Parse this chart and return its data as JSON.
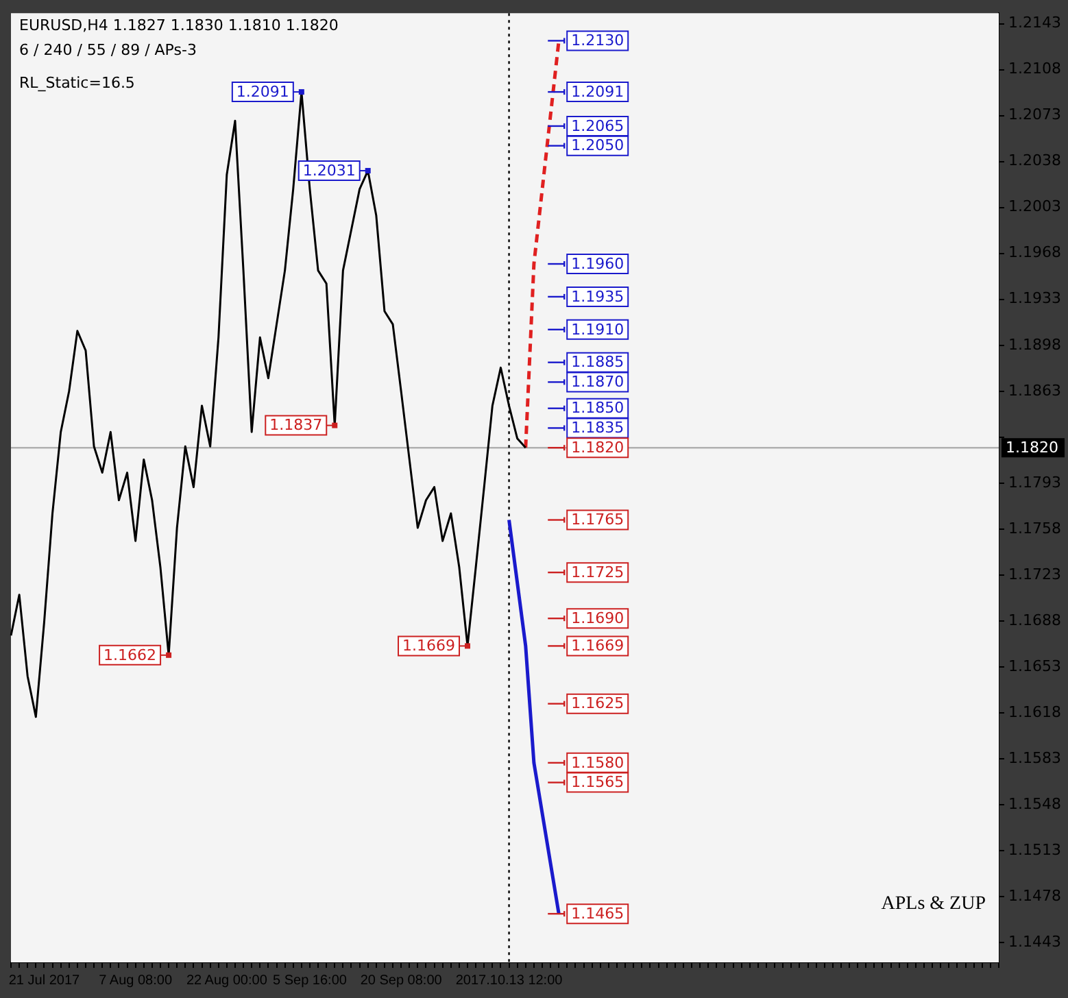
{
  "chart_data": {
    "type": "line",
    "title": "EURUSD,H4 1.1827 1.1830 1.1810 1.1820",
    "subtitle": "6 / 240 / 55 / 89 / APs-3",
    "categories": [
      null,
      null,
      null,
      null,
      "21 Jul 2017",
      null,
      null,
      null,
      null,
      null,
      null,
      null,
      null,
      null,
      null,
      "7 Aug 08:00",
      null,
      null,
      null,
      null,
      null,
      null,
      null,
      null,
      null,
      null,
      "22 Aug 00:00",
      null,
      null,
      null,
      null,
      null,
      null,
      null,
      null,
      null,
      "5 Sep 16:00",
      null,
      null,
      null,
      null,
      null,
      null,
      null,
      null,
      null,
      null,
      "20 Sep 08:00",
      null,
      null,
      null,
      null,
      null,
      null,
      null,
      null,
      null,
      null,
      null,
      null,
      "2017.10.13 12:00",
      null,
      null,
      null,
      null,
      null,
      null,
      null,
      null,
      null,
      null,
      null,
      null,
      null,
      null,
      null,
      null,
      null,
      null,
      null,
      null,
      null,
      null,
      null,
      null,
      null,
      null,
      null,
      null,
      null,
      null,
      null,
      null,
      null,
      null,
      null,
      null,
      null,
      null,
      null,
      null,
      null,
      null,
      null,
      null,
      null,
      null,
      null,
      null,
      null,
      null,
      null,
      null,
      null,
      null,
      null,
      null,
      null,
      null,
      null
    ],
    "series": [
      {
        "color": "#000000",
        "line_style": "solid",
        "values": [
          1.1677,
          1.1708,
          1.1646,
          1.1615,
          1.1687,
          1.177,
          1.1832,
          1.1863,
          1.1909,
          1.1894,
          1.1821,
          1.1801,
          1.1832,
          1.178,
          1.1801,
          1.1749,
          1.1811,
          1.178,
          1.1729,
          1.1662,
          1.1759,
          1.1821,
          1.179,
          1.1852,
          1.1821,
          1.1904,
          1.2028,
          1.2069,
          1.1955,
          1.1832,
          1.1904,
          1.1873,
          1.1914,
          1.1955,
          1.2017,
          1.2091,
          1.2017,
          1.1955,
          1.1945,
          1.1837,
          1.1955,
          1.1986,
          1.2017,
          1.2031,
          1.1997,
          1.1924,
          1.1914,
          1.1863,
          1.1811,
          1.1759,
          1.178,
          1.179,
          1.1749,
          1.177,
          1.1729,
          1.1669,
          1.1729,
          1.179,
          1.1852,
          1.1881,
          1.1852,
          1.1827,
          1.182,
          null,
          null,
          null,
          null,
          null,
          null,
          null,
          null,
          null,
          null,
          null,
          null,
          null,
          null,
          null,
          null,
          null,
          null,
          null,
          null,
          null,
          null,
          null,
          null,
          null,
          null,
          null,
          null,
          null,
          null,
          null,
          null,
          null,
          null,
          null,
          null,
          null,
          null,
          null,
          null,
          null,
          null,
          null,
          null,
          null,
          null,
          null,
          null,
          null,
          null,
          null,
          null,
          null,
          null,
          null,
          null,
          null
        ],
        "value_labels": [
          null,
          null,
          null,
          null,
          null,
          null,
          null,
          null,
          null,
          null,
          null,
          null,
          null,
          null,
          null,
          null,
          null,
          null,
          null,
          "1.1662",
          null,
          null,
          null,
          null,
          null,
          null,
          null,
          null,
          null,
          null,
          null,
          null,
          null,
          null,
          null,
          "1.2091",
          null,
          null,
          null,
          "1.1837",
          null,
          null,
          null,
          "1.2031",
          null,
          null,
          null,
          null,
          null,
          null,
          null,
          null,
          null,
          null,
          null,
          "1.1669",
          null,
          null,
          null,
          null,
          null,
          null,
          null,
          null,
          null,
          null,
          null,
          null,
          null,
          null,
          null,
          null,
          null,
          null,
          null,
          null,
          null,
          null,
          null,
          null,
          null,
          null,
          null,
          null,
          null,
          null,
          null,
          null,
          null,
          null,
          null,
          null,
          null,
          null,
          null,
          null,
          null,
          null,
          null,
          null,
          null,
          null,
          null,
          null,
          null,
          null,
          null,
          null,
          null,
          null,
          null,
          null,
          null,
          null,
          null,
          null,
          null,
          null,
          null,
          null
        ]
      },
      {
        "color": "#e02020",
        "line_style": "dashed",
        "values": [
          null,
          null,
          null,
          null,
          null,
          null,
          null,
          null,
          null,
          null,
          null,
          null,
          null,
          null,
          null,
          null,
          null,
          null,
          null,
          null,
          null,
          null,
          null,
          null,
          null,
          null,
          null,
          null,
          null,
          null,
          null,
          null,
          null,
          null,
          null,
          null,
          null,
          null,
          null,
          null,
          null,
          null,
          null,
          null,
          null,
          null,
          null,
          null,
          null,
          null,
          null,
          null,
          null,
          null,
          null,
          null,
          null,
          null,
          null,
          null,
          null,
          null,
          1.182,
          1.196,
          null,
          null,
          1.213,
          null,
          null,
          null,
          null,
          null,
          null,
          null,
          null,
          null,
          null,
          null,
          null,
          null,
          null,
          null,
          null,
          null,
          null,
          null,
          null,
          null,
          null,
          null,
          null,
          null,
          null,
          null,
          null,
          null,
          null,
          null,
          null,
          null,
          null,
          null,
          null,
          null,
          null,
          null,
          null,
          null,
          null,
          null,
          null,
          null,
          null,
          null,
          null,
          null,
          null,
          null,
          null,
          null
        ]
      },
      {
        "color": "#1a1acc",
        "line_style": "solid",
        "values": [
          null,
          null,
          null,
          null,
          null,
          null,
          null,
          null,
          null,
          null,
          null,
          null,
          null,
          null,
          null,
          null,
          null,
          null,
          null,
          null,
          null,
          null,
          null,
          null,
          null,
          null,
          null,
          null,
          null,
          null,
          null,
          null,
          null,
          null,
          null,
          null,
          null,
          null,
          null,
          null,
          null,
          null,
          null,
          null,
          null,
          null,
          null,
          null,
          null,
          null,
          null,
          null,
          null,
          null,
          null,
          null,
          null,
          null,
          null,
          null,
          1.1765,
          null,
          1.1669,
          1.158,
          null,
          null,
          1.1465,
          null,
          null,
          null,
          null,
          null,
          null,
          null,
          null,
          null,
          null,
          null,
          null,
          null,
          null,
          null,
          null,
          null,
          null,
          null,
          null,
          null,
          null,
          null,
          null,
          null,
          null,
          null,
          null,
          null,
          null,
          null,
          null,
          null,
          null,
          null,
          null,
          null,
          null,
          null,
          null,
          null,
          null,
          null,
          null,
          null,
          null,
          null,
          null,
          null,
          null,
          null,
          null,
          null
        ]
      }
    ],
    "ylim": [
      1.1428,
      1.2151
    ],
    "yticks": [
      1.2143,
      1.2108,
      1.2073,
      1.2038,
      1.2003,
      1.1968,
      1.1933,
      1.1898,
      1.1863,
      {
        "value": 1.1828,
        "label": null
      },
      1.1793,
      1.1758,
      1.1723,
      1.1688,
      1.1653,
      1.1618,
      1.1583,
      1.1548,
      1.1513,
      1.1478,
      1.1443
    ],
    "ref_lines": [
      {
        "axis": "y",
        "value": 1.182,
        "label": "1.1820",
        "color": "#b0b0b0",
        "line_style": "solid"
      },
      {
        "axis": "x",
        "value": "2017.10.13 12:00",
        "color": "#000000",
        "line_style": "dotted"
      },
      {
        "axis": "y",
        "value": 1.213,
        "label": "1.2130",
        "color": "#1a1acc"
      },
      {
        "axis": "y",
        "value": 1.2091,
        "label": "1.2091",
        "color": "#1a1acc"
      },
      {
        "axis": "y",
        "value": 1.2065,
        "label": "1.2065",
        "color": "#1a1acc"
      },
      {
        "axis": "y",
        "value": 1.205,
        "label": "1.2050",
        "color": "#1a1acc"
      },
      {
        "axis": "y",
        "value": 1.196,
        "label": "1.1960",
        "color": "#1a1acc"
      },
      {
        "axis": "y",
        "value": 1.1935,
        "label": "1.1935",
        "color": "#1a1acc"
      },
      {
        "axis": "y",
        "value": 1.191,
        "label": "1.1910",
        "color": "#1a1acc"
      },
      {
        "axis": "y",
        "value": 1.1885,
        "label": "1.1885",
        "color": "#1a1acc"
      },
      {
        "axis": "y",
        "value": 1.187,
        "label": "1.1870",
        "color": "#1a1acc"
      },
      {
        "axis": "y",
        "value": 1.185,
        "label": "1.1850",
        "color": "#1a1acc"
      },
      {
        "axis": "y",
        "value": 1.1835,
        "label": "1.1835",
        "color": "#1a1acc"
      },
      {
        "axis": "y",
        "value": 1.182,
        "label": "1.1820",
        "color": "#cc2020"
      },
      {
        "axis": "y",
        "value": 1.1765,
        "label": "1.1765",
        "color": "#cc2020"
      },
      {
        "axis": "y",
        "value": 1.1725,
        "label": "1.1725",
        "color": "#cc2020"
      },
      {
        "axis": "y",
        "value": 1.169,
        "label": "1.1690",
        "color": "#cc2020"
      },
      {
        "axis": "y",
        "value": 1.1669,
        "label": "1.1669",
        "color": "#cc2020"
      },
      {
        "axis": "y",
        "value": 1.1625,
        "label": "1.1625",
        "color": "#cc2020"
      },
      {
        "axis": "y",
        "value": 1.158,
        "label": "1.1580",
        "color": "#cc2020"
      },
      {
        "axis": "y",
        "value": 1.1565,
        "label": "1.1565",
        "color": "#cc2020"
      },
      {
        "axis": "y",
        "value": 1.1465,
        "label": "1.1465",
        "color": "#cc2020"
      }
    ],
    "annotations": [
      "RL_Static=16.5",
      "APLs & ZUP"
    ],
    "grid": false,
    "legend": false,
    "marker": "none"
  }
}
